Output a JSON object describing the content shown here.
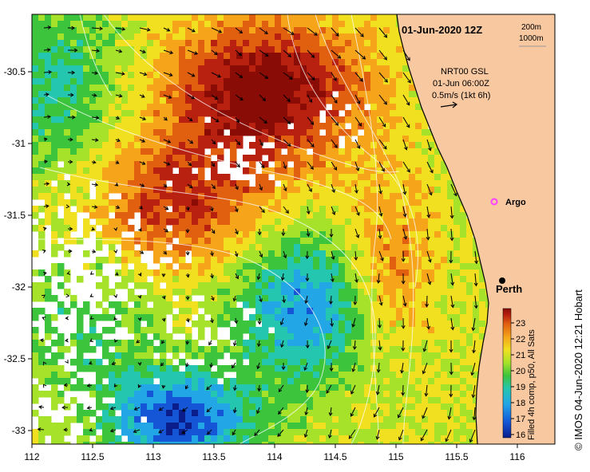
{
  "header": {
    "date_label": "01-Jun-2020 12Z",
    "contour_label_1": "200m",
    "contour_label_2": "1000m"
  },
  "current_info": {
    "line1": "NRT00 GSL",
    "line2": "01-Jun 06:00Z",
    "line3": "0.5m/s (1kt 6h)"
  },
  "markers": {
    "argo": "Argo",
    "city": "Perth"
  },
  "colorbar": {
    "label": "Filled 4h comp, p50, All Sats",
    "ticks": [
      "16",
      "17",
      "18",
      "19",
      "20",
      "21",
      "22",
      "23"
    ]
  },
  "credit": "© IMOS 04-Jun-2020 12:21 Hobart",
  "axes": {
    "x_ticks": [
      "112",
      "112.5",
      "113",
      "113.5",
      "114",
      "114.5",
      "115",
      "115.5",
      "116"
    ],
    "y_ticks": [
      "-30.5",
      "-31",
      "-31.5",
      "-32",
      "-32.5",
      "-33"
    ]
  },
  "colors": {
    "land": "#f8c8a0",
    "accent_argo": "#ff44ff",
    "sst_scale": [
      "#0b1d8a",
      "#1456d6",
      "#22a6e6",
      "#24c6b0",
      "#3cc43c",
      "#a6e22a",
      "#f0e020",
      "#f6a41a",
      "#e06010",
      "#b82010",
      "#8a0c06"
    ]
  }
}
